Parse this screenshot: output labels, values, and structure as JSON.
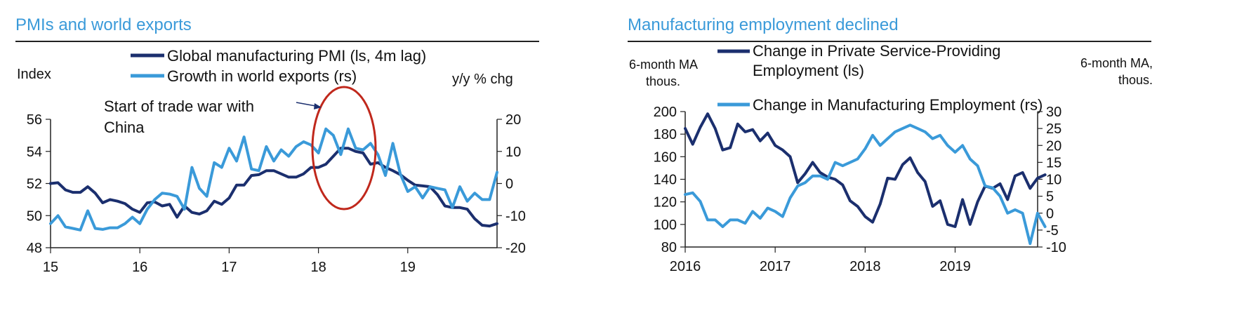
{
  "colors": {
    "dark": "#1b2f6e",
    "light": "#3a9ad9",
    "title": "#3a9ad9",
    "ellipse": "#c0281c"
  },
  "chart_data": [
    {
      "type": "line",
      "title": "PMIs and world exports",
      "left_axis_label": "Index",
      "right_axis_label": "y/y % chg",
      "annotation": "Start of trade war with China",
      "annotation_lines": [
        "Start of trade war with",
        "China"
      ],
      "x_ticks": [
        "15",
        "16",
        "17",
        "18",
        "19"
      ],
      "x_range": [
        2015.0,
        2020.0
      ],
      "ylim_left": [
        48,
        56
      ],
      "yticks_left": [
        "56",
        "54",
        "52",
        "50",
        "48"
      ],
      "ylim_right": [
        -20,
        20
      ],
      "yticks_right": [
        "20",
        "10",
        "0",
        "-10",
        "-20"
      ],
      "series": [
        {
          "name": "Global manufacturing PMI (ls, 4m lag)",
          "axis": "left",
          "x_start": 2015.0,
          "step": 0.08333,
          "values": [
            52.0,
            52.05,
            51.6,
            51.45,
            51.45,
            51.8,
            51.4,
            50.8,
            51.0,
            50.9,
            50.75,
            50.4,
            50.2,
            50.8,
            50.85,
            50.6,
            50.7,
            49.9,
            50.6,
            50.2,
            50.1,
            50.3,
            50.9,
            50.7,
            51.1,
            51.9,
            51.9,
            52.5,
            52.55,
            52.8,
            52.8,
            52.6,
            52.4,
            52.4,
            52.6,
            53.0,
            53.0,
            53.2,
            53.7,
            54.2,
            54.2,
            54.0,
            53.9,
            53.2,
            53.3,
            53.0,
            52.8,
            52.55,
            52.2,
            51.9,
            51.85,
            51.8,
            51.3,
            50.6,
            50.5,
            50.5,
            50.4,
            49.8,
            49.4,
            49.35,
            49.5
          ]
        },
        {
          "name": "Growth in world exports (rs)",
          "axis": "right",
          "x_start": 2015.0,
          "step": 0.08333,
          "values": [
            -12.5,
            -10.0,
            -13.5,
            -14.0,
            -14.5,
            -8.5,
            -14.0,
            -14.3,
            -13.8,
            -13.8,
            -12.5,
            -10.5,
            -12.5,
            -8.0,
            -5.0,
            -3.0,
            -3.3,
            -4.0,
            -8.0,
            5.0,
            -1.5,
            -4.0,
            6.5,
            5.0,
            11.0,
            7.0,
            14.5,
            4.5,
            4.0,
            11.5,
            7.0,
            10.5,
            8.5,
            11.5,
            13.0,
            12.0,
            9.5,
            17.0,
            15.0,
            9.0,
            17.0,
            11.0,
            10.5,
            12.5,
            9.0,
            2.5,
            12.5,
            3.0,
            -2.5,
            -1.0,
            -4.5,
            -1.0,
            -1.5,
            -2.0,
            -7.5,
            -1.0,
            -5.5,
            -3.0,
            -5.0,
            -5.0,
            3.5
          ]
        }
      ]
    },
    {
      "type": "line",
      "title": "Manufacturing employment declined",
      "left_axis_label_lines": [
        "6-month MA",
        "thous."
      ],
      "right_axis_label_lines": [
        "6-month MA,",
        "thous."
      ],
      "x_ticks": [
        "2016",
        "2017",
        "2018",
        "2019"
      ],
      "x_range": [
        2016.0,
        2019.917
      ],
      "ylim_left": [
        80,
        200
      ],
      "yticks_left": [
        "200",
        "180",
        "160",
        "140",
        "120",
        "100",
        "80"
      ],
      "ylim_right": [
        -10,
        30
      ],
      "yticks_right": [
        "30",
        "25",
        "20",
        "15",
        "10",
        "5",
        "0",
        "-5",
        "-10"
      ],
      "series": [
        {
          "name": "Change in Private Service-Providing Employment  (ls)",
          "name_lines": [
            "Change in Private Service-Providing",
            "Employment  (ls)"
          ],
          "axis": "left",
          "x_start": 2016.0,
          "step": 0.08333,
          "values": [
            185,
            171,
            186,
            198,
            185,
            166,
            168,
            189,
            182,
            184,
            174,
            181,
            170,
            166,
            160,
            137,
            145,
            155,
            146,
            142,
            140,
            135,
            121,
            116,
            107,
            102,
            118,
            141,
            140,
            153,
            159,
            146,
            138,
            116,
            121,
            100,
            98,
            122,
            100,
            120,
            134,
            132,
            136,
            122,
            143,
            146,
            132,
            141,
            144
          ]
        },
        {
          "name": "Change in Manufacturing Employment (rs)",
          "axis": "right",
          "x_start": 2016.0,
          "step": 0.08333,
          "values": [
            5.5,
            6.0,
            3.5,
            -2.0,
            -2.0,
            -4.0,
            -2.0,
            -2.0,
            -3.0,
            0.5,
            -1.5,
            1.5,
            0.5,
            -1.0,
            4.5,
            8.0,
            9.0,
            11.0,
            11.0,
            10.0,
            15.0,
            14.0,
            15.0,
            16.0,
            19.0,
            23.0,
            20.0,
            22.0,
            24.0,
            25.0,
            26.0,
            25.0,
            24.0,
            22.0,
            23.0,
            20.0,
            18.0,
            20.0,
            16.0,
            14.0,
            8.0,
            7.5,
            5.0,
            0.0,
            1.0,
            0.0,
            -9.0,
            0.0,
            -4.0
          ]
        }
      ]
    }
  ]
}
